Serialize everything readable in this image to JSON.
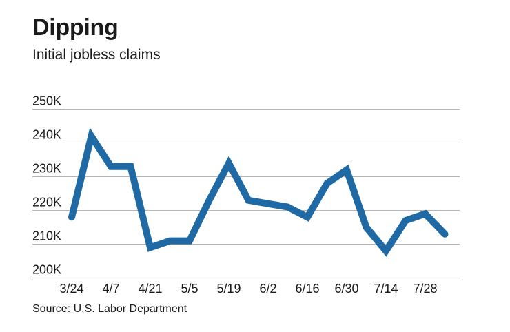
{
  "chart_data": {
    "type": "line",
    "title": "Dipping",
    "subtitle": "Initial jobless claims",
    "source": "Source: U.S. Labor Department",
    "xlabel": "",
    "ylabel": "",
    "x": [
      "3/24",
      "3/31",
      "4/7",
      "4/14",
      "4/21",
      "4/28",
      "5/5",
      "5/12",
      "5/19",
      "5/26",
      "6/2",
      "6/9",
      "6/16",
      "6/23",
      "6/30",
      "7/7",
      "7/14",
      "7/21",
      "7/28",
      "8/4"
    ],
    "x_tick_labels": [
      "3/24",
      "4/7",
      "4/21",
      "5/5",
      "5/19",
      "6/2",
      "6/16",
      "6/30",
      "7/14",
      "7/28"
    ],
    "series": [
      {
        "values": [
          218,
          242,
          233,
          233,
          209,
          211,
          211,
          223,
          234,
          223,
          222,
          221,
          218,
          228,
          232,
          215,
          208,
          217,
          219,
          213
        ]
      }
    ],
    "y_tick_labels": [
      "200K",
      "210K",
      "220K",
      "230K",
      "240K",
      "250K"
    ],
    "y_ticks": [
      200,
      210,
      220,
      230,
      240,
      250
    ],
    "ylim": [
      200,
      250
    ],
    "grid": true,
    "legend": "none",
    "colors": {
      "line": "#1f6aa5",
      "grid": "#b5b5b5",
      "text": "#1a1a1a"
    }
  }
}
